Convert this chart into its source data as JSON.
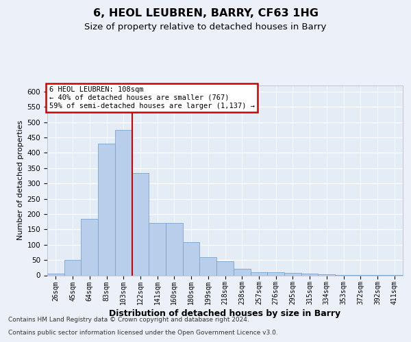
{
  "title1": "6, HEOL LEUBREN, BARRY, CF63 1HG",
  "title2": "Size of property relative to detached houses in Barry",
  "xlabel": "Distribution of detached houses by size in Barry",
  "ylabel": "Number of detached properties",
  "bar_values": [
    5,
    50,
    185,
    430,
    475,
    335,
    172,
    172,
    108,
    60,
    45,
    22,
    10,
    10,
    8,
    5,
    3,
    2,
    2,
    2,
    2
  ],
  "categories": [
    "26sqm",
    "45sqm",
    "64sqm",
    "83sqm",
    "103sqm",
    "122sqm",
    "141sqm",
    "160sqm",
    "180sqm",
    "199sqm",
    "218sqm",
    "238sqm",
    "257sqm",
    "276sqm",
    "295sqm",
    "315sqm",
    "334sqm",
    "353sqm",
    "372sqm",
    "392sqm",
    "411sqm"
  ],
  "bar_color": "#b8ceea",
  "bar_edge_color": "#7ba3cc",
  "background_color": "#ecf1f9",
  "plot_bg_color": "#e4ecf6",
  "grid_color": "#ffffff",
  "vline_color": "#cc0000",
  "vline_x": 4.5,
  "annotation_line1": "6 HEOL LEUBREN: 108sqm",
  "annotation_line2": "← 40% of detached houses are smaller (767)",
  "annotation_line3": "59% of semi-detached houses are larger (1,137) →",
  "annotation_box_color": "#ffffff",
  "annotation_box_edge": "#cc0000",
  "ylim_max": 620,
  "yticks": [
    0,
    50,
    100,
    150,
    200,
    250,
    300,
    350,
    400,
    450,
    500,
    550,
    600
  ],
  "footnote1": "Contains HM Land Registry data © Crown copyright and database right 2024.",
  "footnote2": "Contains public sector information licensed under the Open Government Licence v3.0."
}
